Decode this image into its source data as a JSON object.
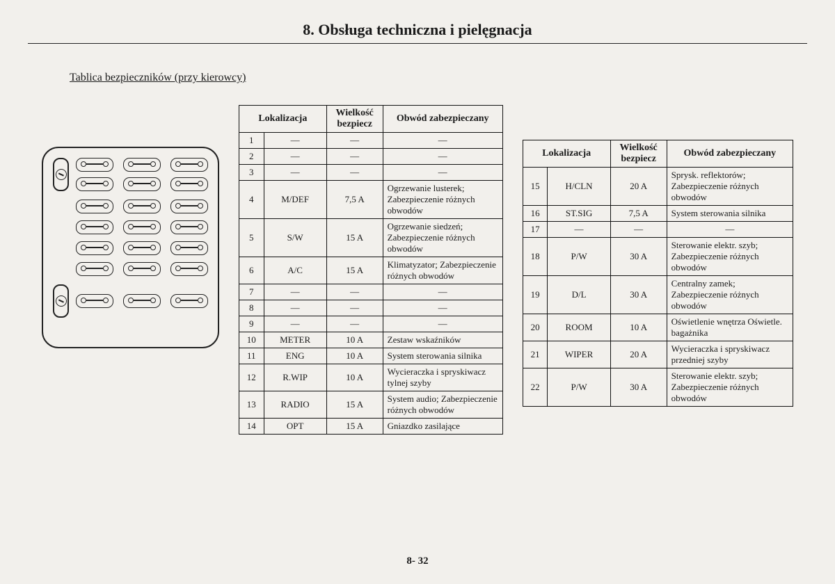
{
  "chapter_title": "8. Obsługa techniczna i pielęgnacja",
  "section_title": "Tablica  bezpieczników  (przy kierowcy)",
  "page_number": "8- 32",
  "headers": {
    "loc": "Lokalizacja",
    "size": "Wielkość bezpiecz",
    "circuit": "Obwód zabezpieczany"
  },
  "table_left": [
    {
      "n": "1",
      "loc": "—",
      "sz": "—",
      "c": "—"
    },
    {
      "n": "2",
      "loc": "—",
      "sz": "—",
      "c": "—"
    },
    {
      "n": "3",
      "loc": "—",
      "sz": "—",
      "c": "—"
    },
    {
      "n": "4",
      "loc": "M/DEF",
      "sz": "7,5 A",
      "c": "Ogrzewanie lusterek; Zabezpieczenie różnych obwodów"
    },
    {
      "n": "5",
      "loc": "S/W",
      "sz": "15 A",
      "c": "Ogrzewanie siedzeń; Zabezpieczenie różnych obwodów"
    },
    {
      "n": "6",
      "loc": "A/C",
      "sz": "15 A",
      "c": "Klimatyzator; Zabezpieczenie różnych obwodów"
    },
    {
      "n": "7",
      "loc": "—",
      "sz": "—",
      "c": "—"
    },
    {
      "n": "8",
      "loc": "—",
      "sz": "—",
      "c": "—"
    },
    {
      "n": "9",
      "loc": "—",
      "sz": "—",
      "c": "—"
    },
    {
      "n": "10",
      "loc": "METER",
      "sz": "10 A",
      "c": "Zestaw wskaźników"
    },
    {
      "n": "11",
      "loc": "ENG",
      "sz": "10 A",
      "c": "System sterowania silnika"
    },
    {
      "n": "12",
      "loc": "R.WIP",
      "sz": "10 A",
      "c": "Wycieraczka i spryskiwacz tylnej szyby"
    },
    {
      "n": "13",
      "loc": "RADIO",
      "sz": "15 A",
      "c": "System audio; Zabezpieczenie różnych obwodów"
    },
    {
      "n": "14",
      "loc": "OPT",
      "sz": "15 A",
      "c": "Gniazdko zasilające"
    }
  ],
  "table_right": [
    {
      "n": "15",
      "loc": "H/CLN",
      "sz": "20 A",
      "c": "Sprysk. reflektorów; Zabezpieczenie różnych obwodów"
    },
    {
      "n": "16",
      "loc": "ST.SIG",
      "sz": "7,5 A",
      "c": "System sterowania silnika"
    },
    {
      "n": "17",
      "loc": "—",
      "sz": "—",
      "c": "—"
    },
    {
      "n": "18",
      "loc": "P/W",
      "sz": "30 A",
      "c": "Sterowanie elektr. szyb; Zabezpieczenie różnych obwodów"
    },
    {
      "n": "19",
      "loc": "D/L",
      "sz": "30 A",
      "c": "Centralny zamek; Zabezpieczenie różnych obwodów"
    },
    {
      "n": "20",
      "loc": "ROOM",
      "sz": "10 A",
      "c": "Oświetlenie wnętrza Oświetle. bagażnika"
    },
    {
      "n": "21",
      "loc": "WIPER",
      "sz": "20 A",
      "c": "Wycieraczka i spryskiwacz przedniej szyby"
    },
    {
      "n": "22",
      "loc": "P/W",
      "sz": "30 A",
      "c": "Sterowanie elektr. szyb; Zabezpieczenie różnych obwodów"
    }
  ]
}
